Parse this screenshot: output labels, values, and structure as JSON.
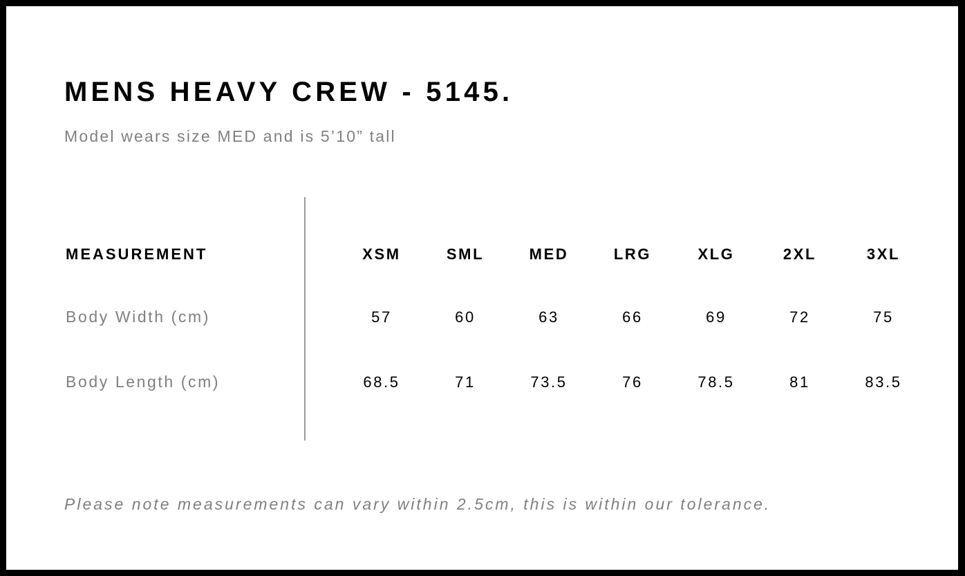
{
  "title": "MENS HEAVY CREW - 5145.",
  "subtitle": "Model wears size MED and is 5’10” tall",
  "table": {
    "header_label": "MEASUREMENT",
    "sizes": [
      "XSM",
      "SML",
      "MED",
      "LRG",
      "XLG",
      "2XL",
      "3XL"
    ],
    "rows": [
      {
        "label": "Body Width (cm)",
        "values": [
          "57",
          "60",
          "63",
          "66",
          "69",
          "72",
          "75"
        ]
      },
      {
        "label": "Body Length (cm)",
        "values": [
          "68.5",
          "71",
          "73.5",
          "76",
          "78.5",
          "81",
          "83.5"
        ]
      }
    ]
  },
  "note": "Please note measurements can vary within 2.5cm, this is within our tolerance."
}
